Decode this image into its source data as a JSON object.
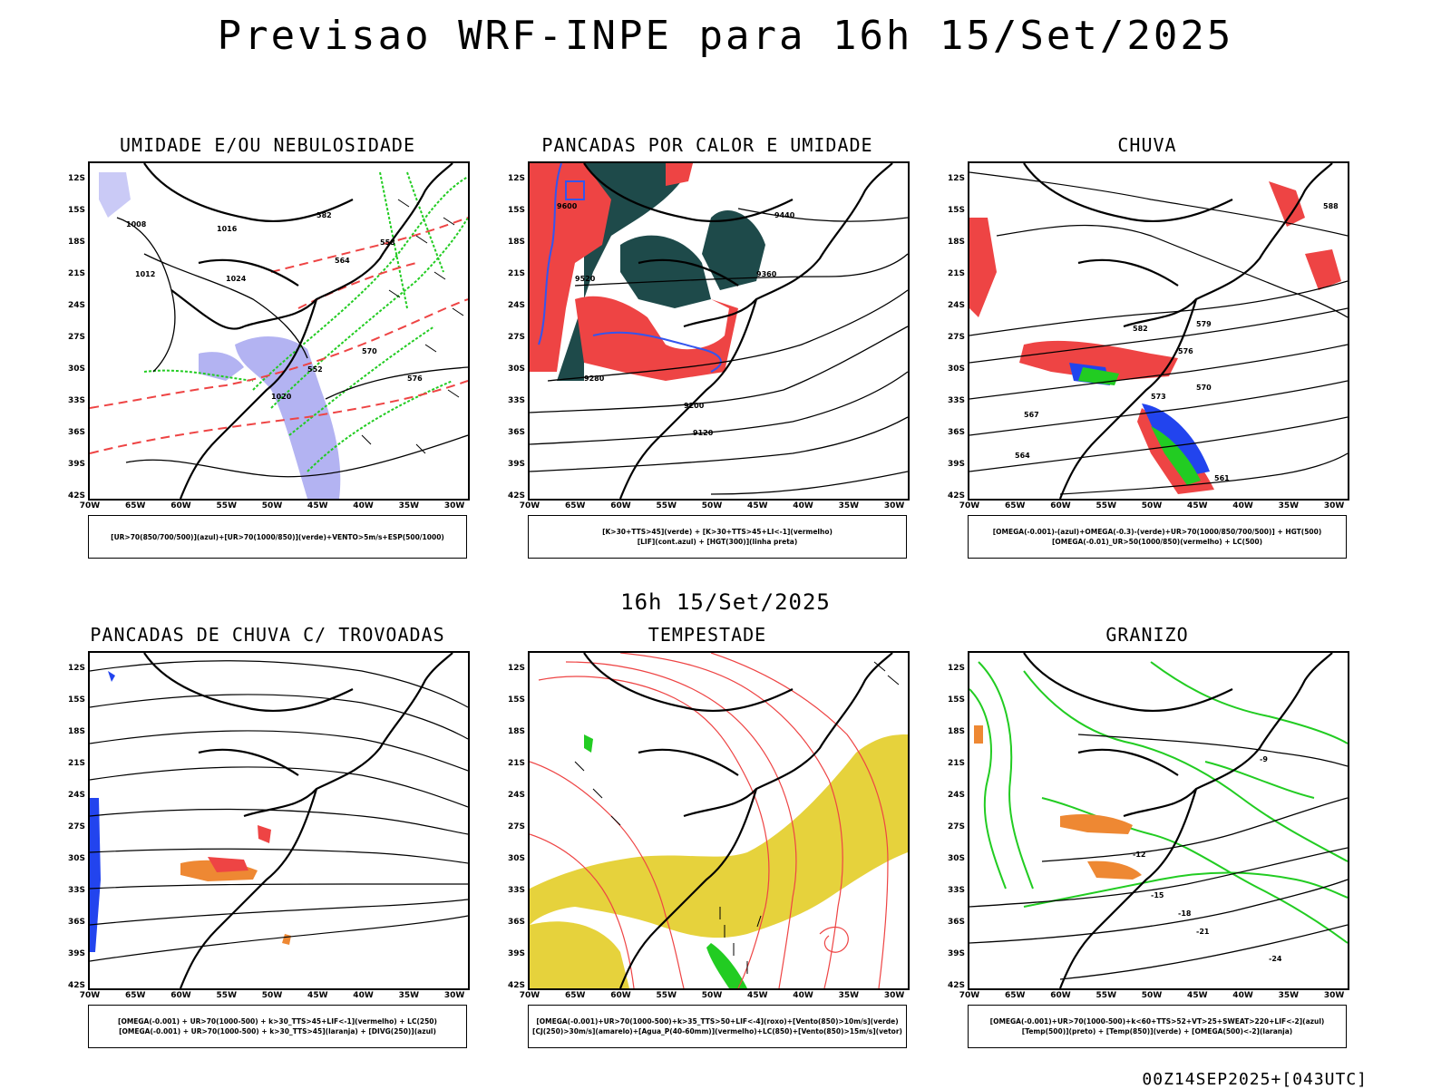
{
  "header": {
    "title": "Previsao WRF-INPE  para 16h 15/Set/2025",
    "mid_time": "16h 15/Set/2025",
    "footer": "00Z14SEP2025+[043UTC]"
  },
  "axes": {
    "lat_labels": [
      "12S",
      "15S",
      "18S",
      "21S",
      "24S",
      "27S",
      "30S",
      "33S",
      "36S",
      "39S",
      "42S"
    ],
    "lon_labels": [
      "70W",
      "65W",
      "60W",
      "55W",
      "50W",
      "45W",
      "40W",
      "35W",
      "30W"
    ]
  },
  "panels": [
    {
      "id": "umidade",
      "title": "UMIDADE E/OU NEBULOSIDADE",
      "legend": [
        "[UR>70(850/700/500)](azul)+[UR>70(1000/850)](verde)+VENTO>5m/s+ESP(500/1000)"
      ],
      "contour_labels": [
        "1008",
        "1012",
        "1016",
        "1020",
        "1024",
        "570",
        "576",
        "564",
        "558",
        "552",
        "582"
      ]
    },
    {
      "id": "calor",
      "title": "PANCADAS POR CALOR E UMIDADE",
      "legend": [
        "[K>30+TTS>45](verde) + [K>30+TTS>45+LI<-1](vermelho)",
        "[LIF](cont.azul) + [HGT(300)](linha preta)"
      ],
      "contour_labels": [
        "9600",
        "9520",
        "9440",
        "9360",
        "9280",
        "9200",
        "9120"
      ]
    },
    {
      "id": "chuva",
      "title": "CHUVA",
      "legend": [
        "[OMEGA(-0.001)-(azul)+OMEGA(-0.3)-(verde)+UR>70(1000/850/700/500)] + HGT(500)",
        "[OMEGA(-0.01)_UR>50(1000/850)(vermelho) + LC(500)"
      ],
      "contour_labels": [
        "588",
        "582",
        "579",
        "576",
        "573",
        "570",
        "567",
        "564",
        "561"
      ]
    },
    {
      "id": "trovoadas",
      "title": "PANCADAS DE CHUVA C/ TROVOADAS",
      "legend": [
        "[OMEGA(-0.001) + UR>70(1000-500) + k>30_TTS>45+LIF<-1](vermelho) + LC(250)",
        "[OMEGA(-0.001) + UR>70(1000-500) + k>30_TTS>45](laranja) + [DIVG(250)](azul)"
      ],
      "contour_labels": []
    },
    {
      "id": "tempestade",
      "title": "TEMPESTADE",
      "legend": [
        "[OMEGA(-0.001)+UR>70(1000-500)+k>35_TTS>50+LIF<-4](roxo)+[Vento(850)>10m/s](verde)",
        "[CJ(250)>30m/s](amarelo)+[Agua_P(40-60mm)](vermelho)+LC(850)+[Vento(850)>15m/s](vetor)"
      ],
      "contour_labels": []
    },
    {
      "id": "granizo",
      "title": "GRANIZO",
      "legend": [
        "[OMEGA(-0.001)+UR>70(1000-500)+k<60+TTS>52+VT>25+SWEAT>220+LIF<-2](azul)",
        "[Temp(500)](preto) + [Temp(850)](verde) + [OMEGA(500)<-2](laranja)"
      ],
      "contour_labels": [
        "-9",
        "-12",
        "-15",
        "-18",
        "-21",
        "-24"
      ]
    }
  ],
  "colors": {
    "humid_blue": "#b3b3f2",
    "humid_green": "#22cc22",
    "storm_red": "#ee4444",
    "heat_dark": "#1e4a4a",
    "jet_yellow": "#e6d23c",
    "omega_blue": "#2244ee",
    "omega_orange": "#ee8833",
    "lif_blue": "#3355ee"
  }
}
